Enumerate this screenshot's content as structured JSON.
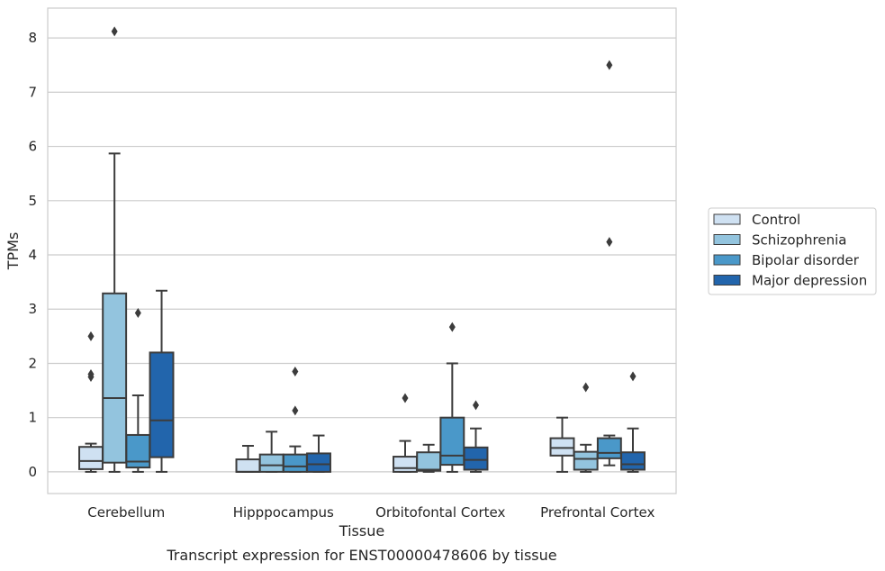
{
  "chart_data": {
    "type": "box",
    "title": "",
    "caption": "Transcript expression for ENST00000478606 by tissue",
    "xlabel": "Tissue",
    "ylabel": "TPMs",
    "ylim": [
      -0.4,
      8.55
    ],
    "yticks": [
      0,
      1,
      2,
      3,
      4,
      5,
      6,
      7,
      8
    ],
    "grid": true,
    "legend_position": "right",
    "categories": [
      "Cerebellum",
      "Hipppocampus",
      "Orbitofontal Cortex",
      "Prefrontal Cortex"
    ],
    "series": [
      {
        "name": "Control",
        "color": "#cfe1f2",
        "boxes": [
          {
            "whislo": 0.0,
            "q1": 0.05,
            "med": 0.2,
            "q3": 0.46,
            "whishi": 0.52,
            "fliers": [
              1.75,
              1.8,
              2.5
            ]
          },
          {
            "whislo": 0.0,
            "q1": 0.0,
            "med": 0.0,
            "q3": 0.23,
            "whishi": 0.48,
            "fliers": []
          },
          {
            "whislo": 0.0,
            "q1": 0.0,
            "med": 0.07,
            "q3": 0.28,
            "whishi": 0.57,
            "fliers": [
              1.36
            ]
          },
          {
            "whislo": 0.0,
            "q1": 0.3,
            "med": 0.44,
            "q3": 0.62,
            "whishi": 1.0,
            "fliers": []
          }
        ]
      },
      {
        "name": "Schizophrenia",
        "color": "#93c4de",
        "boxes": [
          {
            "whislo": 0.0,
            "q1": 0.17,
            "med": 1.36,
            "q3": 3.29,
            "whishi": 5.87,
            "fliers": [
              8.12
            ]
          },
          {
            "whislo": 0.0,
            "q1": 0.0,
            "med": 0.12,
            "q3": 0.32,
            "whishi": 0.74,
            "fliers": []
          },
          {
            "whislo": 0.0,
            "q1": 0.02,
            "med": 0.04,
            "q3": 0.36,
            "whishi": 0.5,
            "fliers": []
          },
          {
            "whislo": 0.0,
            "q1": 0.04,
            "med": 0.24,
            "q3": 0.37,
            "whishi": 0.5,
            "fliers": [
              1.56
            ]
          }
        ]
      },
      {
        "name": "Bipolar disorder",
        "color": "#4a98c9",
        "boxes": [
          {
            "whislo": 0.0,
            "q1": 0.08,
            "med": 0.19,
            "q3": 0.68,
            "whishi": 1.41,
            "fliers": [
              2.93
            ]
          },
          {
            "whislo": 0.0,
            "q1": 0.0,
            "med": 0.1,
            "q3": 0.32,
            "whishi": 0.47,
            "fliers": [
              1.13,
              1.85
            ]
          },
          {
            "whislo": 0.0,
            "q1": 0.13,
            "med": 0.3,
            "q3": 1.0,
            "whishi": 2.0,
            "fliers": [
              2.67
            ]
          },
          {
            "whislo": 0.12,
            "q1": 0.25,
            "med": 0.35,
            "q3": 0.62,
            "whishi": 0.67,
            "fliers": [
              4.24,
              7.5
            ]
          }
        ]
      },
      {
        "name": "Major depression",
        "color": "#2265ac",
        "boxes": [
          {
            "whislo": 0.0,
            "q1": 0.27,
            "med": 0.95,
            "q3": 2.2,
            "whishi": 3.34,
            "fliers": []
          },
          {
            "whislo": 0.0,
            "q1": 0.0,
            "med": 0.14,
            "q3": 0.34,
            "whishi": 0.67,
            "fliers": []
          },
          {
            "whislo": 0.0,
            "q1": 0.04,
            "med": 0.22,
            "q3": 0.45,
            "whishi": 0.8,
            "fliers": [
              1.23
            ]
          },
          {
            "whislo": 0.0,
            "q1": 0.04,
            "med": 0.14,
            "q3": 0.36,
            "whishi": 0.8,
            "fliers": [
              1.76
            ]
          }
        ]
      }
    ]
  }
}
